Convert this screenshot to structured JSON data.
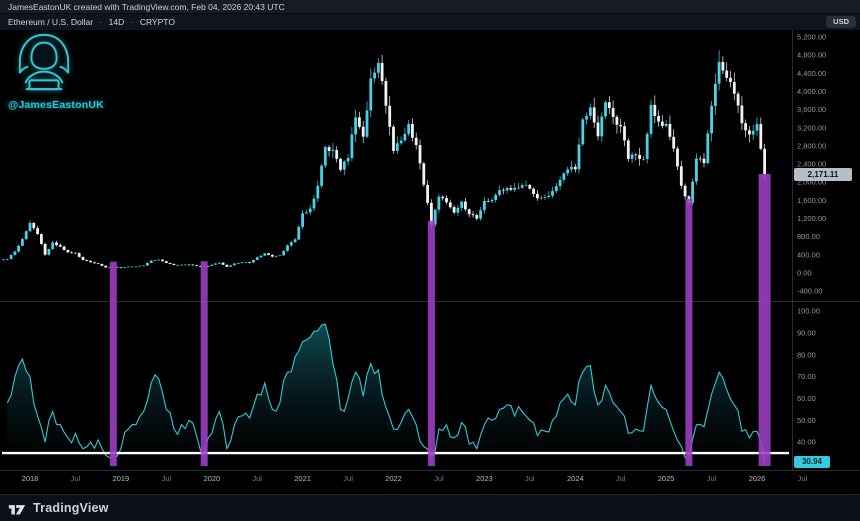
{
  "attribution": {
    "text": "JamesEastonUK created with TradingView.com, Feb 04, 2026 20:43 UTC"
  },
  "symbol_bar": {
    "name": "Ethereum / U.S. Dollar",
    "separator": "·",
    "interval": "14D",
    "market": "CRYPTO",
    "currency_button": "USD"
  },
  "watermark": {
    "handle": "@JamesEastonUK"
  },
  "badges": {
    "last_price": "2,171.11",
    "last_rsi": "30.94"
  },
  "footer": {
    "brand": "TradingView"
  },
  "colors": {
    "up": "#45d3e8",
    "down": "#f1f3f6",
    "accent_teal": "#2fc9da",
    "highlight_purple": "#a13fc6",
    "oversold_line": "#ffffff",
    "axis_text": "#9598a1",
    "badge_price_bg": "#b8bec9",
    "badge_rsi_bg": "#35cadf"
  },
  "chart_data": {
    "type": "candlestick",
    "symbol": "Ethereum / U.S. Dollar",
    "interval": "14D",
    "start_month": "2017-10",
    "closes": [
      305,
      470,
      745,
      1100,
      855,
      400,
      670,
      580,
      450,
      435,
      283,
      233,
      198,
      118,
      133,
      107,
      137,
      141,
      162,
      268,
      290,
      218,
      172,
      180,
      182,
      152,
      129,
      180,
      223,
      134,
      206,
      231,
      226,
      346,
      428,
      359,
      386,
      605,
      737,
      1313,
      1418,
      1919,
      2772,
      2707,
      2274,
      2530,
      3430,
      3001,
      4288,
      4631,
      3683,
      2688,
      2919,
      3283,
      2816,
      1942,
      1067,
      1680,
      1554,
      1328,
      1572,
      1294,
      1196,
      1585,
      1606,
      1822,
      1869,
      1874,
      1933,
      1856,
      1645,
      1671,
      1802,
      2052,
      2281,
      2283,
      3380,
      3647,
      3010,
      3762,
      3438,
      3232,
      2513,
      2602,
      2512,
      3703,
      3336,
      3282,
      2740,
      1920,
      1540,
      2520,
      2420,
      3680,
      4650,
      4300,
      3950,
      3300,
      3050,
      3280,
      2171
    ],
    "rsi": [
      58,
      70,
      78,
      70,
      52,
      40,
      54,
      48,
      42,
      44,
      37,
      40,
      41,
      34,
      33,
      37,
      46,
      48,
      54,
      67,
      69,
      55,
      46,
      48,
      50,
      43,
      34,
      44,
      54,
      37,
      48,
      52,
      51,
      62,
      67,
      55,
      58,
      72,
      79,
      86,
      88,
      91,
      94,
      76,
      55,
      60,
      72,
      61,
      76,
      73,
      56,
      46,
      49,
      55,
      48,
      38,
      33,
      46,
      48,
      42,
      49,
      39,
      37,
      48,
      50,
      55,
      57,
      52,
      54,
      50,
      43,
      45,
      50,
      58,
      62,
      57,
      72,
      75,
      57,
      66,
      58,
      54,
      44,
      46,
      45,
      66,
      58,
      55,
      45,
      38,
      33,
      48,
      47,
      62,
      72,
      64,
      57,
      45,
      42,
      45,
      30.94
    ],
    "price_axis": {
      "min": -550,
      "max": 5350,
      "ticks": [
        5200,
        4800,
        4400,
        4000,
        3600,
        3200,
        2800,
        2400,
        2000,
        1600,
        1200,
        800,
        400,
        0,
        -400
      ]
    },
    "rsi_axis": {
      "min": 27,
      "max": 104,
      "ticks": [
        100,
        90,
        80,
        70,
        60,
        50,
        40,
        30
      ]
    },
    "oversold_level": 35,
    "highlight_indices": [
      14,
      26,
      56,
      90,
      100
    ],
    "time_ticks": [
      {
        "m": 0,
        "label": "2018"
      },
      {
        "m": 6,
        "label": "Jul"
      },
      {
        "m": 12,
        "label": "2019"
      },
      {
        "m": 18,
        "label": "Jul"
      },
      {
        "m": 24,
        "label": "2020"
      },
      {
        "m": 30,
        "label": "Jul"
      },
      {
        "m": 36,
        "label": "2021"
      },
      {
        "m": 42,
        "label": "Jul"
      },
      {
        "m": 48,
        "label": "2022"
      },
      {
        "m": 54,
        "label": "Jul"
      },
      {
        "m": 60,
        "label": "2023"
      },
      {
        "m": 66,
        "label": "Jul"
      },
      {
        "m": 72,
        "label": "2024"
      },
      {
        "m": 78,
        "label": "Jul"
      },
      {
        "m": 84,
        "label": "2025"
      },
      {
        "m": 90,
        "label": "Jul"
      },
      {
        "m": 96,
        "label": "2026"
      },
      {
        "m": 102,
        "label": "Jul"
      }
    ],
    "last_price": 2171.11,
    "last_rsi": 30.94
  }
}
